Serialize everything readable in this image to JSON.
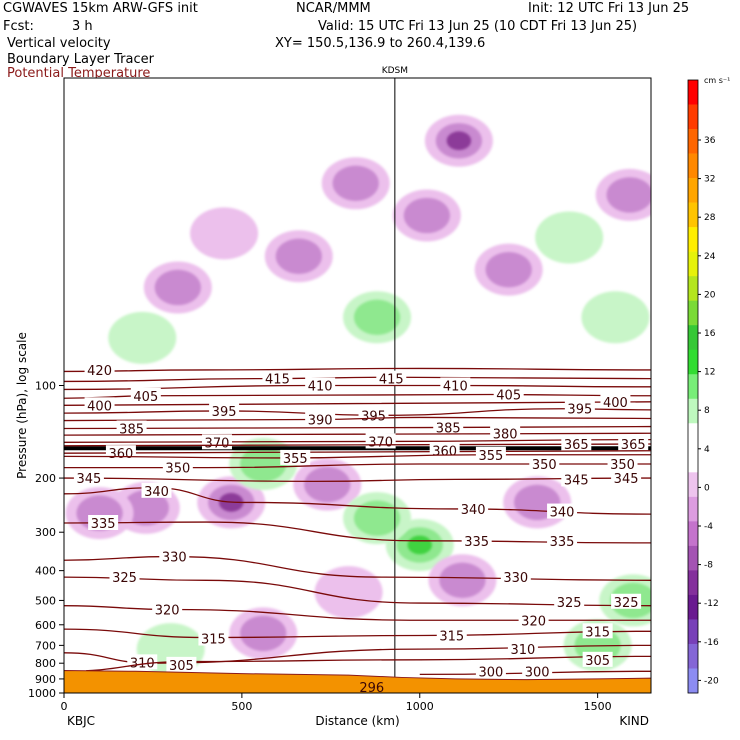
{
  "header": {
    "model": "CGWAVES 15km ARW-GFS init",
    "org": "NCAR/MMM",
    "init": "Init: 12 UTC Fri 13 Jun 25",
    "fcst_label": "Fcst:",
    "fcst_value": "3 h",
    "valid": "Valid: 15 UTC Fri 13 Jun 25 (10 CDT Fri 13 Jun 25)",
    "field1": "Vertical velocity",
    "xy": "XY= 150.5,136.9 to 260.4,139.6",
    "field2": "Boundary Layer Tracer",
    "field3": "Potential Temperature"
  },
  "colors": {
    "theta_contour": "#7a0a0a",
    "terrain": "#f39200",
    "up_light": "#c8f5c8",
    "up_mid": "#8fe88f",
    "up_strong": "#3fd23f",
    "down_light": "#ecc0ec",
    "down_mid": "#c98ad0",
    "down_strong": "#8c3a99"
  },
  "chart_data": {
    "type": "heatmap",
    "title": "",
    "xlabel": "Distance (km)",
    "ylabel": "Pressure (hPa), log scale",
    "x_range": [
      0,
      1650
    ],
    "y_range_hpa": [
      1000,
      10
    ],
    "y_scale": "log",
    "x_ticks": [
      "0",
      "500",
      "1000",
      "1500"
    ],
    "x_tick_values": [
      0,
      500,
      1000,
      1500
    ],
    "y_ticks": [
      "100",
      "200",
      "300",
      "400",
      "500",
      "600",
      "700",
      "800",
      "900",
      "1000"
    ],
    "y_tick_values": [
      100,
      200,
      300,
      400,
      500,
      600,
      700,
      800,
      900,
      1000
    ],
    "endpoints": {
      "left": "KBJC",
      "right": "KIND"
    },
    "marker_station": {
      "name": "KDSM",
      "distance_km": 930
    },
    "marker_label_low": "296",
    "colorbar": {
      "unit": "cm s⁻¹",
      "tick_labels": [
        "36",
        "32",
        "28",
        "24",
        "20",
        "16",
        "12",
        "8",
        "4",
        "0",
        "-4",
        "-8",
        "-12",
        "-16",
        "-20"
      ],
      "colors": [
        "#ff0000",
        "#ff3c00",
        "#ff6600",
        "#ff8800",
        "#ffa500",
        "#ffc400",
        "#ffee00",
        "#e6f20a",
        "#b4e61e",
        "#7ada36",
        "#36c836",
        "#32dc32",
        "#78ee78",
        "#bef8be",
        "#ffffff",
        "#ffffff",
        "#eec4ee",
        "#dc9ce0",
        "#c473cc",
        "#a453b3",
        "#84309c",
        "#6a1a90",
        "#7840b8",
        "#8466d6",
        "#8c8cf2"
      ]
    },
    "theta_contours": [
      {
        "label": "420",
        "values": [
          [
            0,
            90
          ],
          [
            400,
            89
          ],
          [
            1000,
            88
          ],
          [
            1650,
            89
          ]
        ],
        "labels_at": [
          [
            100,
            89
          ]
        ]
      },
      {
        "label": "415",
        "values": [
          [
            0,
            97
          ],
          [
            550,
            95
          ],
          [
            930,
            94
          ],
          [
            1650,
            95
          ]
        ],
        "labels_at": [
          [
            600,
            95
          ],
          [
            920,
            95
          ]
        ]
      },
      {
        "label": "410",
        "values": [
          [
            0,
            103
          ],
          [
            700,
            100
          ],
          [
            1100,
            100
          ],
          [
            1650,
            101
          ]
        ],
        "labels_at": [
          [
            720,
            100
          ],
          [
            1100,
            100
          ]
        ]
      },
      {
        "label": "405",
        "values": [
          [
            0,
            110
          ],
          [
            250,
            108
          ],
          [
            1200,
            107
          ],
          [
            1650,
            108
          ]
        ],
        "labels_at": [
          [
            230,
            108
          ],
          [
            1250,
            107
          ]
        ]
      },
      {
        "label": "400",
        "values": [
          [
            0,
            116
          ],
          [
            1650,
            113
          ]
        ],
        "labels_at": [
          [
            100,
            116
          ],
          [
            1550,
            113
          ]
        ]
      },
      {
        "label": "395",
        "values": [
          [
            0,
            123
          ],
          [
            450,
            121
          ],
          [
            900,
            125
          ],
          [
            1400,
            119
          ],
          [
            1650,
            120
          ]
        ],
        "labels_at": [
          [
            450,
            121
          ],
          [
            870,
            125
          ],
          [
            1450,
            119
          ]
        ]
      },
      {
        "label": "390",
        "values": [
          [
            0,
            130
          ],
          [
            700,
            129
          ],
          [
            1000,
            127
          ],
          [
            1650,
            128
          ]
        ],
        "labels_at": [
          [
            720,
            129
          ]
        ]
      },
      {
        "label": "385",
        "values": [
          [
            0,
            138
          ],
          [
            1000,
            137
          ],
          [
            1650,
            136
          ]
        ],
        "labels_at": [
          [
            190,
            138
          ],
          [
            1080,
            137
          ]
        ]
      },
      {
        "label": "380",
        "values": [
          [
            0,
            145
          ],
          [
            1650,
            143
          ]
        ],
        "labels_at": [
          [
            1240,
            143
          ]
        ]
      },
      {
        "label": "370",
        "values": [
          [
            0,
            153
          ],
          [
            900,
            152
          ],
          [
            1650,
            150
          ]
        ],
        "labels_at": [
          [
            430,
            153
          ],
          [
            890,
            152
          ]
        ]
      },
      {
        "label": "365",
        "values": [
          [
            0,
            157
          ],
          [
            1650,
            155
          ]
        ],
        "labels_at": [
          [
            1440,
            155
          ],
          [
            1600,
            155
          ]
        ]
      },
      {
        "label": "360",
        "values": [
          [
            0,
            166
          ],
          [
            1650,
            163
          ]
        ],
        "labels_at": [
          [
            160,
            166
          ],
          [
            1070,
            163
          ]
        ]
      },
      {
        "label": "355",
        "values": [
          [
            0,
            170
          ],
          [
            600,
            172
          ],
          [
            1200,
            168
          ],
          [
            1650,
            168
          ]
        ],
        "labels_at": [
          [
            650,
            172
          ],
          [
            1200,
            168
          ]
        ]
      },
      {
        "label": "350",
        "values": [
          [
            0,
            185
          ],
          [
            400,
            185
          ],
          [
            1000,
            180
          ],
          [
            1650,
            180
          ]
        ],
        "labels_at": [
          [
            320,
            185
          ],
          [
            1350,
            180
          ],
          [
            1570,
            180
          ]
        ]
      },
      {
        "label": "345",
        "values": [
          [
            0,
            200
          ],
          [
            700,
            205
          ],
          [
            1100,
            202
          ],
          [
            1650,
            200
          ]
        ],
        "labels_at": [
          [
            70,
            200
          ],
          [
            1440,
            202
          ],
          [
            1580,
            200
          ]
        ]
      },
      {
        "label": "340",
        "values": [
          [
            0,
            225
          ],
          [
            250,
            215
          ],
          [
            500,
            240
          ],
          [
            1100,
            252
          ],
          [
            1650,
            262
          ]
        ],
        "labels_at": [
          [
            260,
            220
          ],
          [
            1150,
            252
          ],
          [
            1400,
            257
          ]
        ]
      },
      {
        "label": "335",
        "values": [
          [
            0,
            280
          ],
          [
            400,
            278
          ],
          [
            1000,
            320
          ],
          [
            1650,
            325
          ]
        ],
        "labels_at": [
          [
            110,
            280
          ],
          [
            1160,
            320
          ],
          [
            1400,
            320
          ]
        ]
      },
      {
        "label": "330",
        "values": [
          [
            0,
            370
          ],
          [
            300,
            360
          ],
          [
            900,
            420
          ],
          [
            1650,
            430
          ]
        ],
        "labels_at": [
          [
            310,
            360
          ],
          [
            1270,
            420
          ]
        ]
      },
      {
        "label": "325",
        "values": [
          [
            0,
            420
          ],
          [
            400,
            430
          ],
          [
            1000,
            510
          ],
          [
            1650,
            520
          ]
        ],
        "labels_at": [
          [
            170,
            420
          ],
          [
            1420,
            505
          ],
          [
            1580,
            505
          ]
        ]
      },
      {
        "label": "320",
        "values": [
          [
            0,
            520
          ],
          [
            300,
            535
          ],
          [
            1000,
            580
          ],
          [
            1650,
            580
          ]
        ],
        "labels_at": [
          [
            290,
            535
          ],
          [
            1320,
            580
          ]
        ]
      },
      {
        "label": "315",
        "values": [
          [
            0,
            620
          ],
          [
            400,
            660
          ],
          [
            1000,
            650
          ],
          [
            1650,
            630
          ]
        ],
        "labels_at": [
          [
            420,
            665
          ],
          [
            1090,
            650
          ],
          [
            1500,
            630
          ]
        ]
      },
      {
        "label": "310",
        "values": [
          [
            0,
            740
          ],
          [
            250,
            800
          ],
          [
            1000,
            720
          ],
          [
            1650,
            700
          ]
        ],
        "labels_at": [
          [
            220,
            795
          ],
          [
            1290,
            720
          ]
        ]
      },
      {
        "label": "305",
        "values": [
          [
            0,
            850
          ],
          [
            350,
            790
          ],
          [
            1000,
            780
          ],
          [
            1650,
            760
          ]
        ],
        "labels_at": [
          [
            330,
            810
          ],
          [
            20,
            880
          ],
          [
            1500,
            780
          ]
        ]
      },
      {
        "label": "300",
        "values": [
          [
            1000,
            870
          ],
          [
            1650,
            850
          ]
        ],
        "labels_at": [
          [
            1200,
            850
          ],
          [
            1330,
            850
          ]
        ]
      }
    ],
    "w_blobs": [
      {
        "x": 320,
        "p": 48,
        "value": -6
      },
      {
        "x": 220,
        "p": 70,
        "value": 3
      },
      {
        "x": 450,
        "p": 32,
        "value": -3
      },
      {
        "x": 660,
        "p": 38,
        "value": -5
      },
      {
        "x": 820,
        "p": 22,
        "value": -6
      },
      {
        "x": 1020,
        "p": 28,
        "value": -6
      },
      {
        "x": 1110,
        "p": 16,
        "value": -9
      },
      {
        "x": 1250,
        "p": 42,
        "value": -6
      },
      {
        "x": 1420,
        "p": 33,
        "value": 2
      },
      {
        "x": 1550,
        "p": 60,
        "value": 3
      },
      {
        "x": 1590,
        "p": 24,
        "value": -4
      },
      {
        "x": 880,
        "p": 60,
        "value": 4
      },
      {
        "x": 470,
        "p": 240,
        "value": -9
      },
      {
        "x": 230,
        "p": 250,
        "value": -5
      },
      {
        "x": 100,
        "p": 260,
        "value": -4
      },
      {
        "x": 740,
        "p": 210,
        "value": -5
      },
      {
        "x": 560,
        "p": 180,
        "value": 5
      },
      {
        "x": 1000,
        "p": 330,
        "value": 12
      },
      {
        "x": 880,
        "p": 270,
        "value": 6
      },
      {
        "x": 1330,
        "p": 240,
        "value": -4
      },
      {
        "x": 1500,
        "p": 700,
        "value": 6
      },
      {
        "x": 1600,
        "p": 500,
        "value": 4
      },
      {
        "x": 1120,
        "p": 430,
        "value": -4
      },
      {
        "x": 560,
        "p": 640,
        "value": -4
      },
      {
        "x": 300,
        "p": 720,
        "value": 3
      },
      {
        "x": 800,
        "p": 470,
        "value": -3
      }
    ],
    "terrain": [
      [
        0,
        845
      ],
      [
        200,
        850
      ],
      [
        500,
        865
      ],
      [
        800,
        875
      ],
      [
        950,
        890
      ],
      [
        1100,
        900
      ],
      [
        1300,
        905
      ],
      [
        1500,
        900
      ],
      [
        1650,
        895
      ]
    ]
  }
}
